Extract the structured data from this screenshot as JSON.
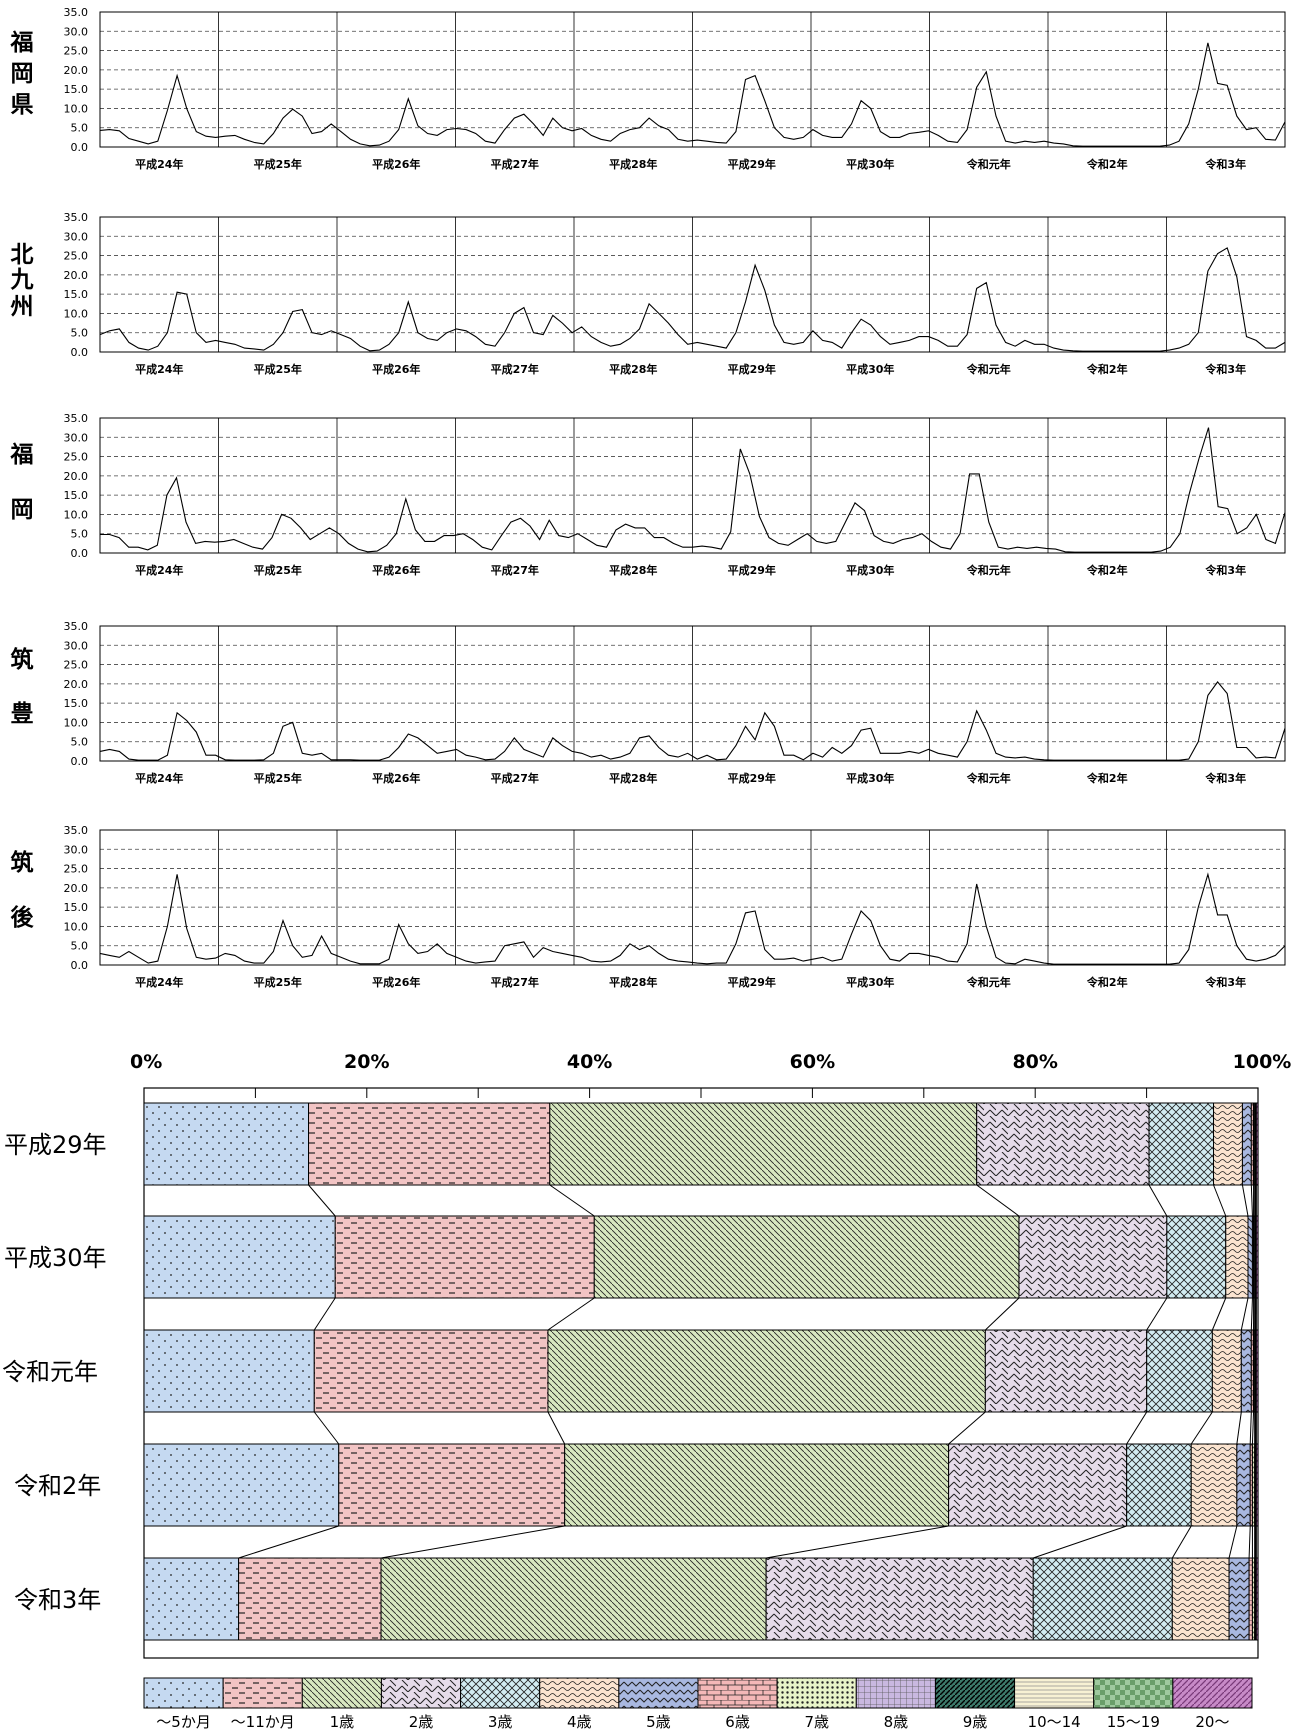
{
  "chart_data": [
    {
      "type": "line",
      "region": "福岡県",
      "region_chars": [
        "福",
        "岡",
        "県"
      ],
      "ylim": [
        0,
        35
      ],
      "yticks": [
        "0.0",
        "5.0",
        "10.0",
        "15.0",
        "20.0",
        "25.0",
        "30.0",
        "35.0"
      ],
      "x_year_labels": [
        "平成24年",
        "平成25年",
        "平成26年",
        "平成27年",
        "平成28年",
        "平成29年",
        "平成30年",
        "令和元年",
        "令和2年",
        "令和3年"
      ],
      "values": [
        4.3,
        4.5,
        4.2,
        2.2,
        1.5,
        0.8,
        1.5,
        9.5,
        18.5,
        10.0,
        4.0,
        2.8,
        2.5,
        2.8,
        3.0,
        2.0,
        1.2,
        0.8,
        3.5,
        7.5,
        9.8,
        8.0,
        3.5,
        4.0,
        6.0,
        4.0,
        2.0,
        0.8,
        0.3,
        0.5,
        1.5,
        4.5,
        12.5,
        5.5,
        3.5,
        3.0,
        4.5,
        4.8,
        4.5,
        3.5,
        1.5,
        1.0,
        4.5,
        7.5,
        8.5,
        6.0,
        3.0,
        7.5,
        5.0,
        4.2,
        4.8,
        3.0,
        2.0,
        1.5,
        3.5,
        4.5,
        5.0,
        7.5,
        5.5,
        4.5,
        2.0,
        1.5,
        1.8,
        1.5,
        1.2,
        1.0,
        4.0,
        17.5,
        18.5,
        12.0,
        5.0,
        2.5,
        2.0,
        2.5,
        4.5,
        3.0,
        2.5,
        2.5,
        6.0,
        12.0,
        10.0,
        4.0,
        2.5,
        2.5,
        3.5,
        3.8,
        4.2,
        3.0,
        1.5,
        1.2,
        4.5,
        15.5,
        19.5,
        8.0,
        1.5,
        1.0,
        1.5,
        1.2,
        1.5,
        1.0,
        0.8,
        0.3,
        0.2,
        0.2,
        0.2,
        0.2,
        0.2,
        0.2,
        0.2,
        0.2,
        0.2,
        0.5,
        1.5,
        6.0,
        15.0,
        27.0,
        16.5,
        16.0,
        8.0,
        4.5,
        5.0,
        2.0,
        1.8,
        6.5
      ]
    },
    {
      "type": "line",
      "region": "北九州",
      "region_chars": [
        "北",
        "九",
        "州"
      ],
      "ylim": [
        0,
        35
      ],
      "yticks": [
        "0.0",
        "5.0",
        "10.0",
        "15.0",
        "20.0",
        "25.0",
        "30.0",
        "35.0"
      ],
      "x_year_labels": [
        "平成24年",
        "平成25年",
        "平成26年",
        "平成27年",
        "平成28年",
        "平成29年",
        "平成30年",
        "令和元年",
        "令和2年",
        "令和3年"
      ],
      "values": [
        4.5,
        5.5,
        6.0,
        2.5,
        1.0,
        0.5,
        1.5,
        5.0,
        15.5,
        15.0,
        5.0,
        2.5,
        3.0,
        2.5,
        2.0,
        1.0,
        0.8,
        0.5,
        2.0,
        5.0,
        10.5,
        11.0,
        5.0,
        4.5,
        5.5,
        4.5,
        3.5,
        1.5,
        0.3,
        0.5,
        2.0,
        5.0,
        13.0,
        5.0,
        3.5,
        3.0,
        5.0,
        6.0,
        5.5,
        4.0,
        2.0,
        1.5,
        5.0,
        10.0,
        11.5,
        5.0,
        4.5,
        9.5,
        7.5,
        5.0,
        6.5,
        4.0,
        2.5,
        1.5,
        2.0,
        3.5,
        6.0,
        12.5,
        10.0,
        7.5,
        4.5,
        2.0,
        2.5,
        2.0,
        1.5,
        1.0,
        5.0,
        13.0,
        22.5,
        16.0,
        7.0,
        2.5,
        2.0,
        2.5,
        5.5,
        3.0,
        2.5,
        1.0,
        5.0,
        8.5,
        7.0,
        4.0,
        2.0,
        2.5,
        3.0,
        4.0,
        4.0,
        3.0,
        1.5,
        1.5,
        4.5,
        16.5,
        18.0,
        7.0,
        2.5,
        1.5,
        3.0,
        2.0,
        2.0,
        1.0,
        0.5,
        0.3,
        0.2,
        0.2,
        0.2,
        0.2,
        0.2,
        0.2,
        0.2,
        0.2,
        0.2,
        0.5,
        1.0,
        2.0,
        5.0,
        21.0,
        25.5,
        27.0,
        19.5,
        4.0,
        3.0,
        1.0,
        1.0,
        2.5
      ]
    },
    {
      "type": "line",
      "region": "福岡",
      "region_chars": [
        "福",
        "岡"
      ],
      "ylim": [
        0,
        35
      ],
      "yticks": [
        "0.0",
        "5.0",
        "10.0",
        "15.0",
        "20.0",
        "25.0",
        "30.0",
        "35.0"
      ],
      "x_year_labels": [
        "平成24年",
        "平成25年",
        "平成26年",
        "平成27年",
        "平成28年",
        "平成29年",
        "平成30年",
        "令和元年",
        "令和2年",
        "令和3年"
      ],
      "values": [
        4.8,
        4.8,
        4.0,
        1.5,
        1.5,
        0.8,
        2.0,
        15.0,
        19.5,
        8.0,
        2.5,
        3.0,
        2.8,
        3.0,
        3.5,
        2.5,
        1.5,
        1.0,
        4.0,
        10.0,
        9.0,
        6.5,
        3.5,
        5.0,
        6.5,
        5.0,
        2.5,
        1.0,
        0.3,
        0.5,
        2.0,
        5.0,
        14.0,
        6.0,
        3.0,
        3.0,
        4.5,
        4.5,
        5.0,
        3.5,
        1.5,
        0.8,
        4.5,
        8.0,
        9.0,
        7.0,
        3.5,
        8.5,
        4.5,
        4.0,
        5.0,
        3.5,
        2.0,
        1.5,
        6.0,
        7.5,
        6.5,
        6.5,
        4.0,
        4.0,
        2.5,
        1.5,
        1.5,
        1.8,
        1.5,
        1.0,
        5.5,
        27.0,
        20.5,
        9.5,
        4.0,
        2.5,
        2.0,
        3.5,
        5.0,
        3.0,
        2.5,
        3.0,
        8.0,
        13.0,
        11.0,
        4.5,
        3.0,
        2.5,
        3.5,
        4.0,
        5.0,
        3.0,
        1.5,
        1.0,
        5.0,
        20.5,
        20.5,
        8.0,
        1.5,
        1.0,
        1.5,
        1.2,
        1.5,
        1.2,
        1.0,
        0.3,
        0.2,
        0.2,
        0.2,
        0.2,
        0.2,
        0.2,
        0.2,
        0.2,
        0.2,
        0.5,
        1.5,
        5.0,
        15.5,
        24.5,
        32.5,
        12.0,
        11.5,
        5.0,
        6.5,
        10.0,
        3.5,
        2.5,
        10.5
      ]
    },
    {
      "type": "line",
      "region": "筑豊",
      "region_chars": [
        "筑",
        "豊"
      ],
      "ylim": [
        0,
        35
      ],
      "yticks": [
        "0.0",
        "5.0",
        "10.0",
        "15.0",
        "20.0",
        "25.0",
        "30.0",
        "35.0"
      ],
      "x_year_labels": [
        "平成24年",
        "平成25年",
        "平成26年",
        "平成27年",
        "平成28年",
        "平成29年",
        "平成30年",
        "令和元年",
        "令和2年",
        "令和3年"
      ],
      "values": [
        2.5,
        3.0,
        2.5,
        0.5,
        0.2,
        0.2,
        0.2,
        1.5,
        12.5,
        10.5,
        7.5,
        1.5,
        1.5,
        0.3,
        0.2,
        0.2,
        0.2,
        0.3,
        2.0,
        9.0,
        10.0,
        2.0,
        1.5,
        2.0,
        0.3,
        0.3,
        0.3,
        0.2,
        0.2,
        0.2,
        1.0,
        3.5,
        7.0,
        6.0,
        4.0,
        2.0,
        2.5,
        3.0,
        1.5,
        1.0,
        0.3,
        0.5,
        2.5,
        6.0,
        3.0,
        2.0,
        1.0,
        6.0,
        4.0,
        2.5,
        2.0,
        1.0,
        1.5,
        0.5,
        1.0,
        2.0,
        6.0,
        6.5,
        3.5,
        1.5,
        1.0,
        2.0,
        0.5,
        1.5,
        0.3,
        0.5,
        4.0,
        9.0,
        5.5,
        12.5,
        9.0,
        1.5,
        1.5,
        0.3,
        2.0,
        1.0,
        3.5,
        2.0,
        4.0,
        8.0,
        8.5,
        2.0,
        2.0,
        2.0,
        2.5,
        2.0,
        3.0,
        2.0,
        1.5,
        1.0,
        5.0,
        13.0,
        8.0,
        2.0,
        1.0,
        0.8,
        1.0,
        0.5,
        0.3,
        0.2,
        0.2,
        0.2,
        0.2,
        0.2,
        0.2,
        0.2,
        0.2,
        0.2,
        0.2,
        0.2,
        0.2,
        0.2,
        0.2,
        0.5,
        5.0,
        17.0,
        20.5,
        17.5,
        3.5,
        3.5,
        0.8,
        1.0,
        0.8,
        8.5
      ]
    },
    {
      "type": "line",
      "region": "筑後",
      "region_chars": [
        "筑",
        "後"
      ],
      "ylim": [
        0,
        35
      ],
      "yticks": [
        "0.0",
        "5.0",
        "10.0",
        "15.0",
        "20.0",
        "25.0",
        "30.0",
        "35.0"
      ],
      "x_year_labels": [
        "平成24年",
        "平成25年",
        "平成26年",
        "平成27年",
        "平成28年",
        "平成29年",
        "平成30年",
        "令和元年",
        "令和2年",
        "令和3年"
      ],
      "values": [
        3.0,
        2.5,
        2.0,
        3.5,
        2.0,
        0.5,
        1.0,
        10.0,
        23.5,
        9.5,
        2.0,
        1.5,
        1.8,
        3.0,
        2.5,
        1.0,
        0.5,
        0.5,
        3.5,
        11.5,
        5.0,
        2.0,
        2.5,
        7.5,
        3.0,
        2.0,
        1.0,
        0.3,
        0.3,
        0.3,
        1.5,
        10.5,
        5.5,
        3.0,
        3.5,
        5.5,
        3.0,
        2.0,
        1.0,
        0.5,
        0.8,
        1.0,
        5.0,
        5.5,
        6.0,
        2.0,
        4.5,
        3.5,
        3.0,
        2.5,
        2.0,
        1.0,
        0.8,
        1.0,
        2.5,
        5.5,
        4.0,
        5.0,
        3.0,
        1.5,
        1.0,
        0.8,
        0.5,
        0.3,
        0.5,
        0.5,
        5.5,
        13.5,
        14.0,
        4.0,
        1.5,
        1.5,
        1.8,
        1.0,
        1.5,
        2.0,
        1.0,
        1.5,
        8.0,
        14.0,
        11.5,
        5.0,
        1.5,
        1.0,
        3.0,
        3.0,
        2.5,
        2.0,
        1.0,
        0.8,
        5.5,
        21.0,
        10.0,
        2.0,
        0.5,
        0.3,
        1.5,
        1.0,
        0.5,
        0.2,
        0.2,
        0.2,
        0.2,
        0.2,
        0.2,
        0.2,
        0.2,
        0.2,
        0.2,
        0.2,
        0.2,
        0.2,
        0.5,
        4.0,
        15.0,
        23.5,
        13.0,
        13.0,
        5.0,
        1.5,
        1.0,
        1.5,
        2.5,
        5.0
      ]
    },
    {
      "type": "bar",
      "stacked": "percent",
      "orientation": "horizontal",
      "x_ticks": [
        "0%",
        "20%",
        "40%",
        "60%",
        "80%",
        "100%"
      ],
      "categories": [
        "平成29年",
        "平成30年",
        "令和元年",
        "令和2年",
        "令和3年"
      ],
      "series": [
        {
          "name": "～5か月",
          "color": "#c5d9f1",
          "pattern": "dots-sparse",
          "values": [
            14.8,
            17.2,
            15.3,
            17.5,
            8.5
          ]
        },
        {
          "name": "～11か月",
          "color": "#f2c4c4",
          "pattern": "dashes",
          "values": [
            21.7,
            23.3,
            21.0,
            20.3,
            12.8
          ]
        },
        {
          "name": "1歳",
          "color": "#d8e8c0",
          "pattern": "diagonal",
          "values": [
            38.4,
            38.2,
            39.3,
            34.5,
            34.6
          ]
        },
        {
          "name": "2歳",
          "color": "#e6dcea",
          "pattern": "crosshatch-dash",
          "values": [
            15.5,
            13.3,
            14.5,
            16.0,
            24.0
          ]
        },
        {
          "name": "3歳",
          "color": "#d2ecf2",
          "pattern": "crosshatch",
          "values": [
            5.8,
            5.3,
            5.9,
            5.8,
            12.5
          ]
        },
        {
          "name": "4歳",
          "color": "#fbe4d0",
          "pattern": "waves",
          "values": [
            2.6,
            2.0,
            2.6,
            4.1,
            5.1
          ]
        },
        {
          "name": "5歳",
          "color": "#a9b8e0",
          "pattern": "weave",
          "values": [
            0.8,
            0.4,
            0.9,
            1.2,
            1.8
          ]
        },
        {
          "name": "6歳",
          "color": "#f4b8b8",
          "pattern": "bricks",
          "values": [
            0.2,
            0.1,
            0.2,
            0.2,
            0.3
          ]
        },
        {
          "name": "7歳",
          "color": "#e8f4c8",
          "pattern": "dots-dense",
          "values": [
            0.1,
            0.1,
            0.1,
            0.2,
            0.2
          ]
        },
        {
          "name": "8歳",
          "color": "#c9b8e0",
          "pattern": "grid",
          "values": [
            0.05,
            0.05,
            0.05,
            0.05,
            0.05
          ]
        },
        {
          "name": "9歳",
          "color": "#3c7a6a",
          "pattern": "diagonal-dark",
          "values": [
            0.03,
            0.03,
            0.03,
            0.03,
            0.03
          ]
        },
        {
          "name": "10～14",
          "color": "#f7f1d4",
          "pattern": "horizontal",
          "values": [
            0.05,
            0.05,
            0.05,
            0.05,
            0.05
          ]
        },
        {
          "name": "15～19",
          "color": "#9fc99f",
          "pattern": "checker",
          "values": [
            0.02,
            0.02,
            0.02,
            0.02,
            0.02
          ]
        },
        {
          "name": "20～",
          "color": "#c78ac7",
          "pattern": "diagonal-strong",
          "values": [
            0.15,
            0.15,
            0.15,
            0.15,
            0.15
          ]
        }
      ]
    }
  ]
}
